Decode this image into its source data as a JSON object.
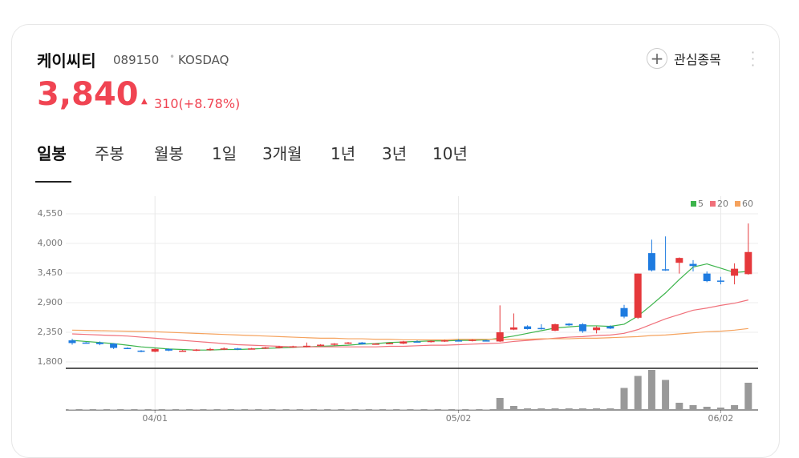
{
  "stock": {
    "name": "케이씨티",
    "code": "089150",
    "market": "KOSDAQ",
    "price": "3,840",
    "change": "310(+8.78%)",
    "watch": "관심종목"
  },
  "tabs": [
    "일봉",
    "주봉",
    "월봉",
    "1일",
    "3개월",
    "1년",
    "3년",
    "10년"
  ],
  "chart_data": {
    "type": "candlestick",
    "categories": [
      null,
      null,
      null,
      null,
      null,
      null,
      "04/01",
      null,
      null,
      null,
      null,
      null,
      null,
      null,
      null,
      null,
      null,
      null,
      null,
      null,
      null,
      null,
      null,
      null,
      null,
      null,
      null,
      null,
      "05/02",
      null,
      null,
      null,
      null,
      null,
      null,
      null,
      null,
      null,
      null,
      null,
      null,
      null,
      null,
      null,
      null,
      null,
      null,
      "06/02",
      null,
      null
    ],
    "ohlc": {
      "up_color": "#e5383b",
      "down_color": "#1e7be0",
      "open": [
        2200,
        2160,
        2160,
        2140,
        2060,
        2010,
        1990,
        2040,
        2000,
        2020,
        2030,
        2040,
        2050,
        2040,
        2050,
        2070,
        2070,
        2080,
        2110,
        2120,
        2150,
        2160,
        2130,
        2140,
        2140,
        2180,
        2170,
        2190,
        2200,
        2190,
        2200,
        2180,
        2400,
        2460,
        2430,
        2380,
        2510,
        2500,
        2390,
        2460,
        2800,
        2620,
        3820,
        3520,
        3640,
        3620,
        3440,
        3310,
        3400,
        3430
      ],
      "high": [
        2230,
        2170,
        2180,
        2150,
        2070,
        2020,
        2050,
        2050,
        2020,
        2040,
        2060,
        2070,
        2060,
        2060,
        2080,
        2100,
        2100,
        2160,
        2130,
        2150,
        2170,
        2170,
        2150,
        2160,
        2190,
        2200,
        2200,
        2210,
        2220,
        2220,
        2210,
        2850,
        2700,
        2480,
        2500,
        2510,
        2520,
        2520,
        2460,
        2480,
        2860,
        3440,
        4070,
        4130,
        3740,
        3690,
        3480,
        3380,
        3630,
        4370
      ],
      "low": [
        2120,
        2140,
        2110,
        2040,
        2040,
        1980,
        1980,
        2000,
        1990,
        2000,
        2010,
        2020,
        2020,
        2030,
        2040,
        2050,
        2060,
        2070,
        2090,
        2100,
        2130,
        2120,
        2120,
        2130,
        2130,
        2160,
        2160,
        2170,
        2180,
        2180,
        2180,
        2170,
        2390,
        2400,
        2400,
        2370,
        2470,
        2340,
        2330,
        2410,
        2610,
        2600,
        3480,
        3490,
        3440,
        3480,
        3280,
        3240,
        3240,
        3420
      ],
      "close": [
        2150,
        2150,
        2130,
        2060,
        2050,
        1990,
        2040,
        2010,
        2010,
        2030,
        2040,
        2050,
        2030,
        2050,
        2070,
        2080,
        2090,
        2100,
        2120,
        2140,
        2160,
        2130,
        2140,
        2150,
        2180,
        2170,
        2190,
        2200,
        2190,
        2210,
        2190,
        2350,
        2440,
        2410,
        2420,
        2500,
        2480,
        2370,
        2440,
        2420,
        2640,
        3440,
        3500,
        3500,
        3730,
        3580,
        3300,
        3290,
        3530,
        3840
      ]
    },
    "series": [
      {
        "name": "5",
        "color": "#3cb44b",
        "values": [
          2200,
          2180,
          2160,
          2140,
          2110,
          2080,
          2060,
          2040,
          2030,
          2020,
          2020,
          2030,
          2030,
          2040,
          2050,
          2060,
          2070,
          2080,
          2090,
          2100,
          2110,
          2130,
          2140,
          2160,
          2170,
          2180,
          2190,
          2190,
          2200,
          2200,
          2210,
          2240,
          2280,
          2330,
          2380,
          2430,
          2450,
          2470,
          2470,
          2460,
          2500,
          2650,
          2860,
          3080,
          3330,
          3560,
          3620,
          3540,
          3460,
          3480
        ]
      },
      {
        "name": "20",
        "color": "#f0707a",
        "values": [
          2320,
          2310,
          2300,
          2290,
          2280,
          2260,
          2240,
          2220,
          2200,
          2180,
          2160,
          2140,
          2120,
          2110,
          2100,
          2090,
          2080,
          2080,
          2080,
          2080,
          2080,
          2080,
          2080,
          2090,
          2090,
          2100,
          2110,
          2110,
          2120,
          2130,
          2140,
          2150,
          2180,
          2200,
          2220,
          2240,
          2260,
          2270,
          2290,
          2300,
          2330,
          2400,
          2500,
          2600,
          2680,
          2760,
          2800,
          2850,
          2890,
          2950
        ]
      },
      {
        "name": "60",
        "color": "#f5a25d",
        "values": [
          2390,
          2385,
          2380,
          2375,
          2370,
          2365,
          2360,
          2350,
          2340,
          2330,
          2320,
          2310,
          2300,
          2290,
          2280,
          2270,
          2260,
          2250,
          2240,
          2240,
          2230,
          2230,
          2220,
          2220,
          2210,
          2210,
          2210,
          2210,
          2220,
          2220,
          2220,
          2220,
          2220,
          2220,
          2230,
          2230,
          2230,
          2240,
          2240,
          2250,
          2260,
          2270,
          2290,
          2300,
          2320,
          2340,
          2360,
          2370,
          2390,
          2420
        ]
      }
    ],
    "volume": {
      "color": "#999999",
      "values": [
        1,
        1,
        1,
        1,
        1,
        1,
        1,
        1,
        1,
        1,
        1,
        1,
        1,
        1,
        1,
        1,
        1,
        1,
        1,
        1,
        1,
        1,
        1,
        1,
        1,
        1,
        1,
        1,
        1,
        1,
        1,
        30,
        10,
        4,
        4,
        4,
        4,
        4,
        4,
        4,
        55,
        85,
        100,
        75,
        18,
        12,
        8,
        6,
        12,
        68
      ],
      "ylim": [
        0,
        100
      ]
    },
    "ylim": [
      1800,
      4550
    ],
    "yticks": [
      {
        "value": 1800,
        "label": "1,800"
      },
      {
        "value": 2350,
        "label": "2,350"
      },
      {
        "value": 2900,
        "label": "2,900"
      },
      {
        "value": 3450,
        "label": "3,450"
      },
      {
        "value": 4000,
        "label": "4,000"
      },
      {
        "value": 4550,
        "label": "4,550"
      }
    ],
    "grid": true
  }
}
